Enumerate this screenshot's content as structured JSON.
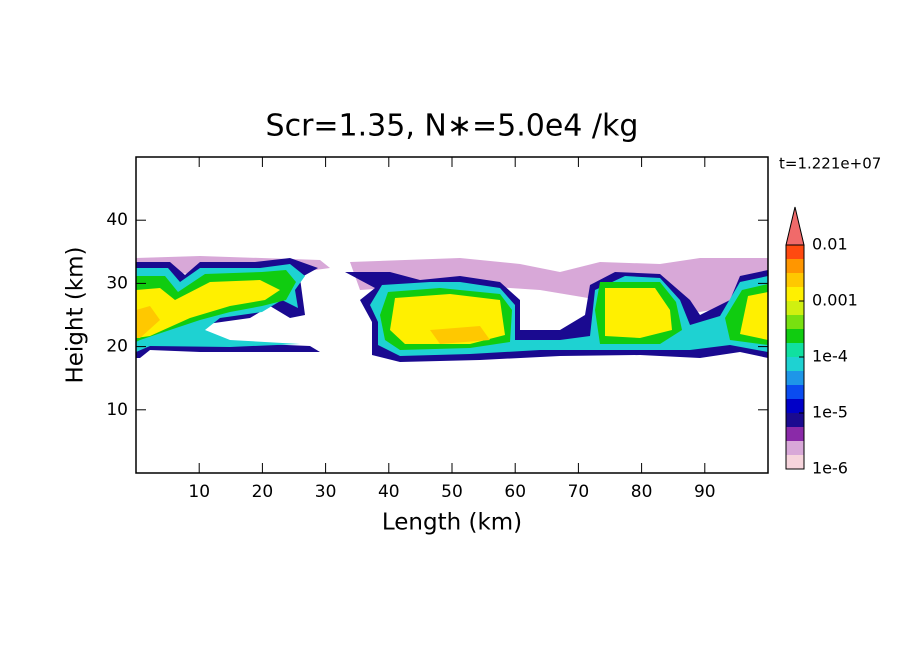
{
  "chart_data": {
    "type": "contour",
    "title": "Scr=1.35, N∗=5.0e4 /kg",
    "annotation": "t=1.221e+07",
    "x_label": "Length  (km)",
    "y_label": "Height  (km)",
    "xlim": [
      0,
      100
    ],
    "ylim": [
      0,
      50
    ],
    "xticks": [
      10,
      20,
      30,
      40,
      50,
      60,
      70,
      80,
      90
    ],
    "yticks": [
      10,
      20,
      30,
      40
    ],
    "colorbar_log": true,
    "colorbar_lim": [
      1e-06,
      0.01
    ],
    "colorbar_ticks": [
      {
        "value": 1e-06,
        "label": "1e-6"
      },
      {
        "value": 1e-05,
        "label": "1e-5"
      },
      {
        "value": 0.0001,
        "label": "1e-4"
      },
      0.001,
      0.01
    ],
    "colorbar_colors": [
      "#f6d4dc",
      "#d8a8d8",
      "#8a2aa8",
      "#1a0a90",
      "#0000c8",
      "#0a4cf0",
      "#1e96e8",
      "#1ed2d2",
      "#10e0a0",
      "#10cc10",
      "#78e010",
      "#d0f010",
      "#fff000",
      "#ffc800",
      "#ff9600",
      "#ff4a10"
    ],
    "extend_color": "#f06a6a"
  }
}
